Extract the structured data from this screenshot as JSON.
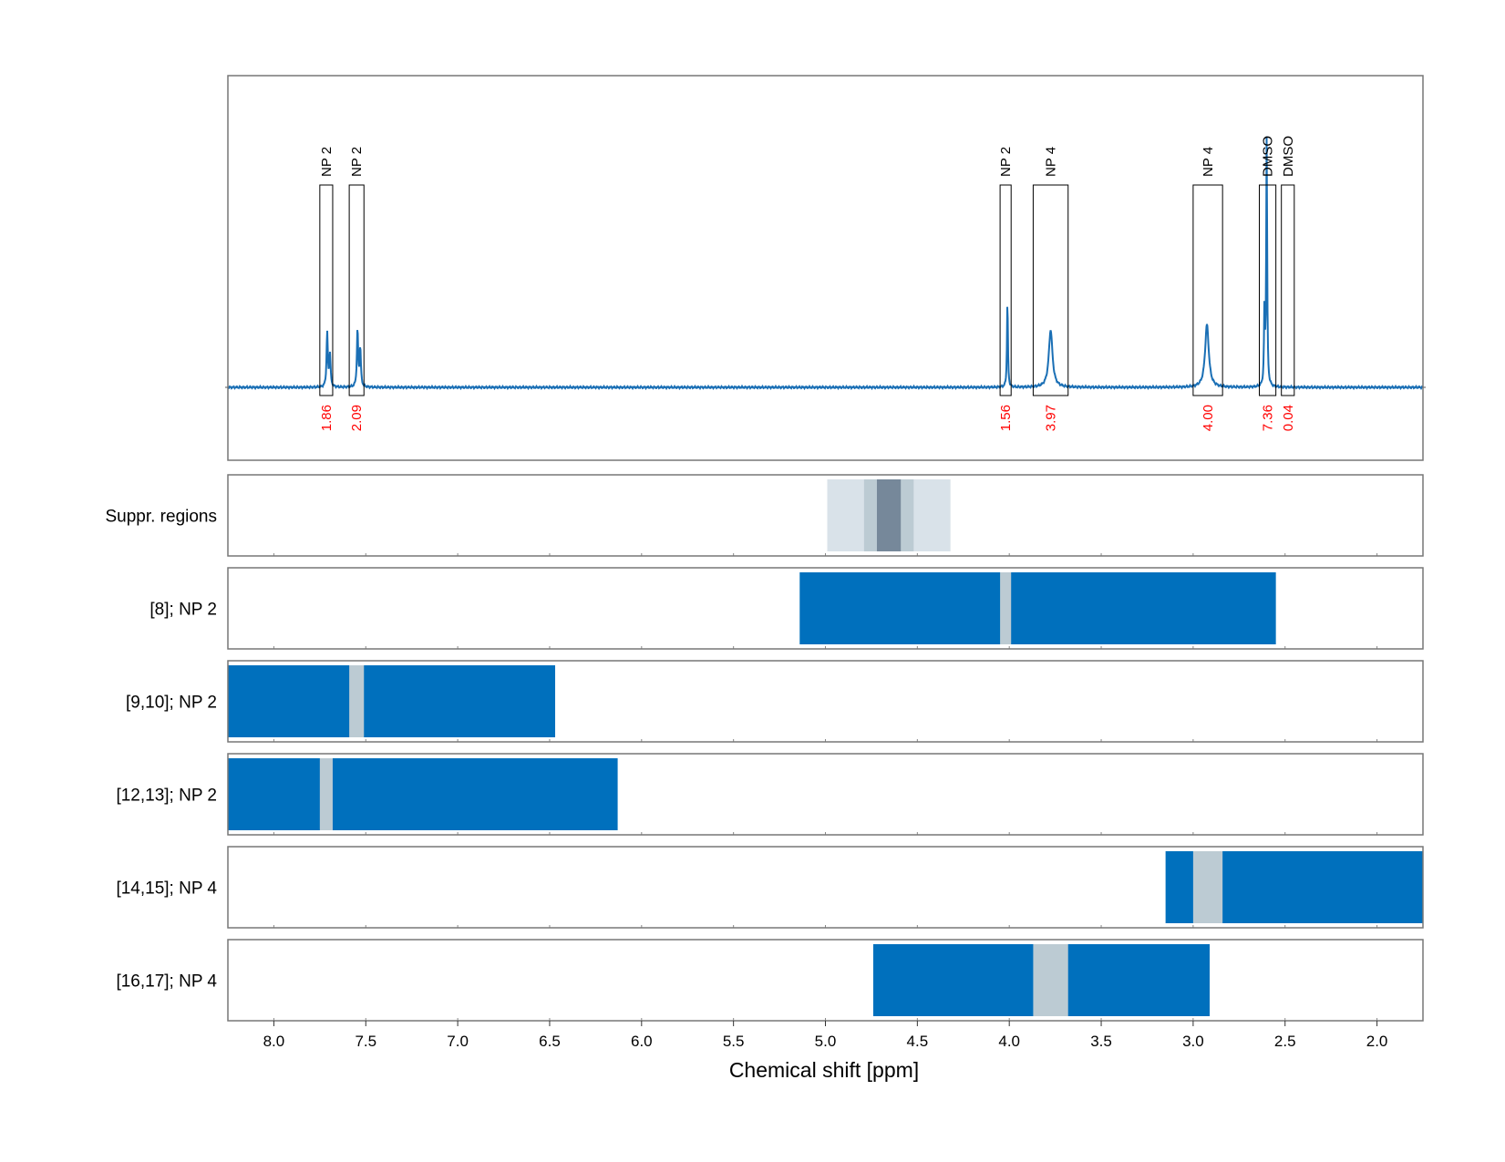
{
  "chart_data": {
    "type": "line",
    "xlabel": "Chemical shift [ppm]",
    "xlim": [
      8.25,
      1.75
    ],
    "x_ticks": [
      8.0,
      7.5,
      7.0,
      6.5,
      6.0,
      5.5,
      5.0,
      4.5,
      4.0,
      3.5,
      3.0,
      2.5,
      2.0
    ],
    "x_tick_labels": [
      "8.0",
      "7.5",
      "7.0",
      "6.5",
      "6.0",
      "5.5",
      "5.0",
      "4.5",
      "4.0",
      "3.5",
      "3.0",
      "2.5",
      "2.0"
    ],
    "grid": "vertical dashed",
    "colors": {
      "spectrum": "#1a6fb5",
      "track_fill": "#0070bd",
      "window_gray": "#bccbd3",
      "suppr_light": "#d9e2e9",
      "suppr_mid": "#bccbd3",
      "suppr_dark": "#76889a",
      "integral_text": "#ff0000",
      "box_stroke": "#000000"
    },
    "spectrum": {
      "peaks": [
        {
          "center": 7.71,
          "height": 0.2,
          "width": 0.004
        },
        {
          "center": 7.695,
          "height": 0.12,
          "width": 0.004
        },
        {
          "center": 7.545,
          "height": 0.21,
          "width": 0.004
        },
        {
          "center": 7.53,
          "height": 0.14,
          "width": 0.004
        },
        {
          "center": 4.01,
          "height": 0.32,
          "width": 0.003
        },
        {
          "center": 3.775,
          "height": 0.21,
          "width": 0.012
        },
        {
          "center": 2.925,
          "height": 0.23,
          "width": 0.012
        },
        {
          "center": 2.6,
          "height": 0.91,
          "width": 0.003
        },
        {
          "center": 2.612,
          "height": 0.28,
          "width": 0.003
        }
      ]
    },
    "annotations": [
      {
        "label": "NP 2",
        "x_start": 7.75,
        "x_end": 7.68,
        "integral": "1.86"
      },
      {
        "label": "NP 2",
        "x_start": 7.59,
        "x_end": 7.51,
        "integral": "2.09"
      },
      {
        "label": "NP 2",
        "x_start": 4.05,
        "x_end": 3.99,
        "integral": "1.56"
      },
      {
        "label": "NP 4",
        "x_start": 3.87,
        "x_end": 3.68,
        "integral": "3.97"
      },
      {
        "label": "NP 4",
        "x_start": 3.0,
        "x_end": 2.84,
        "integral": "4.00"
      },
      {
        "label": "DMSO",
        "x_start": 2.64,
        "x_end": 2.55,
        "integral": "7.36"
      },
      {
        "label": "DMSO",
        "x_start": 2.52,
        "x_end": 2.45,
        "integral": "0.04"
      }
    ],
    "tracks": [
      {
        "label": "Suppr. regions",
        "type": "suppression",
        "bands": [
          {
            "x_start": 4.99,
            "x_end": 4.32,
            "shade": "light"
          },
          {
            "x_start": 4.79,
            "x_end": 4.52,
            "shade": "mid"
          },
          {
            "x_start": 4.72,
            "x_end": 4.59,
            "shade": "dark"
          }
        ]
      },
      {
        "label": "[8]; NP 2",
        "type": "window",
        "x_start": 5.14,
        "x_end": 2.55,
        "window": [
          4.05,
          3.99
        ]
      },
      {
        "label": "[9,10]; NP 2",
        "type": "window",
        "x_start": 8.25,
        "x_end": 6.47,
        "window": [
          7.59,
          7.51
        ]
      },
      {
        "label": "[12,13]; NP 2",
        "type": "window",
        "x_start": 8.25,
        "x_end": 6.13,
        "window": [
          7.75,
          7.68
        ]
      },
      {
        "label": "[14,15]; NP 4",
        "type": "window",
        "x_start": 3.15,
        "x_end": 1.75,
        "window": [
          3.0,
          2.84
        ]
      },
      {
        "label": "[16,17]; NP 4",
        "type": "window",
        "x_start": 4.74,
        "x_end": 2.91,
        "window": [
          3.87,
          3.68
        ]
      }
    ]
  }
}
